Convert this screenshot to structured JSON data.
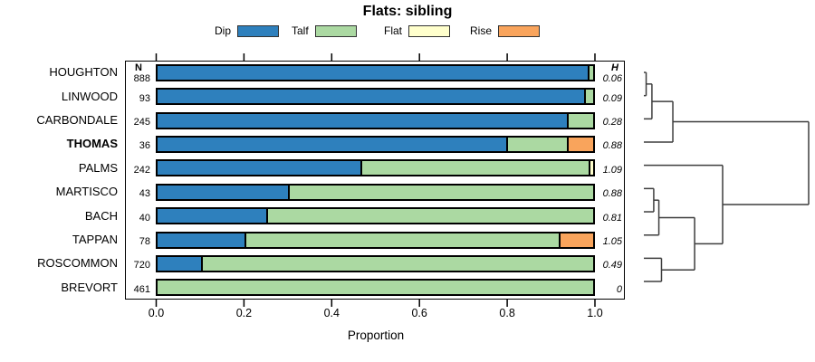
{
  "title": "Flats: sibling",
  "legend": {
    "items": [
      {
        "label": "Dip",
        "color": "#2E80BD"
      },
      {
        "label": "Talf",
        "color": "#ABD9A2"
      },
      {
        "label": "Flat",
        "color": "#FFFFCC"
      },
      {
        "label": "Rise",
        "color": "#F9A45C"
      }
    ]
  },
  "table": {
    "n_header": "N",
    "h_header": "H"
  },
  "axis": {
    "xlabel": "Proportion",
    "ticks": [
      "0.0",
      "0.2",
      "0.4",
      "0.6",
      "0.8",
      "1.0"
    ],
    "tick_values": [
      0,
      0.2,
      0.4,
      0.6,
      0.8,
      1.0
    ]
  },
  "chart_data": {
    "type": "bar",
    "orientation": "horizontal",
    "stacked": true,
    "title": "Flats: sibling",
    "xlabel": "Proportion",
    "xlim": [
      0,
      1
    ],
    "categories": [
      "HOUGHTON",
      "LINWOOD",
      "CARBONDALE",
      "THOMAS",
      "PALMS",
      "MARTISCO",
      "BACH",
      "TAPPAN",
      "ROSCOMMON",
      "BREVORT"
    ],
    "bold_category": "THOMAS",
    "n_values": [
      "888",
      "93",
      "245",
      "36",
      "242",
      "43",
      "40",
      "78",
      "720",
      "461"
    ],
    "h_values": [
      "0.06",
      "0.09",
      "0.28",
      "0.88",
      "1.09",
      "0.88",
      "0.81",
      "1.05",
      "0.49",
      "0"
    ],
    "series": [
      {
        "name": "Dip",
        "color": "#2E80BD",
        "values": [
          0.988,
          0.98,
          0.94,
          0.8,
          0.465,
          0.3,
          0.25,
          0.2,
          0.1,
          0
        ]
      },
      {
        "name": "Talf",
        "color": "#ABD9A2",
        "values": [
          0.012,
          0.02,
          0.06,
          0.14,
          0.525,
          0.7,
          0.75,
          0.72,
          0.9,
          1.0
        ]
      },
      {
        "name": "Flat",
        "color": "#FFFFCC",
        "values": [
          0,
          0,
          0,
          0,
          0.01,
          0,
          0,
          0,
          0,
          0
        ]
      },
      {
        "name": "Rise",
        "color": "#F9A45C",
        "values": [
          0,
          0,
          0,
          0.06,
          0,
          0,
          0,
          0.08,
          0,
          0
        ]
      }
    ],
    "dendrogram": {
      "leaf_order": [
        "HOUGHTON",
        "LINWOOD",
        "CARBONDALE",
        "THOMAS",
        "PALMS",
        "MARTISCO",
        "BACH",
        "TAPPAN",
        "ROSCOMMON",
        "BREVORT"
      ],
      "merges": [
        {
          "a": "HOUGHTON",
          "b": "LINWOOD",
          "h": 0.014
        },
        {
          "a": "@0",
          "b": "CARBONDALE",
          "h": 0.049
        },
        {
          "a": "@1",
          "b": "THOMAS",
          "h": 0.176
        },
        {
          "a": "MARTISCO",
          "b": "BACH",
          "h": 0.06
        },
        {
          "a": "@3",
          "b": "TAPPAN",
          "h": 0.091
        },
        {
          "a": "ROSCOMMON",
          "b": "BREVORT",
          "h": 0.107
        },
        {
          "a": "@4",
          "b": "@5",
          "h": 0.308
        },
        {
          "a": "PALMS",
          "b": "@6",
          "h": 0.478
        },
        {
          "a": "@2",
          "b": "@7",
          "h": 1.0
        }
      ]
    }
  }
}
